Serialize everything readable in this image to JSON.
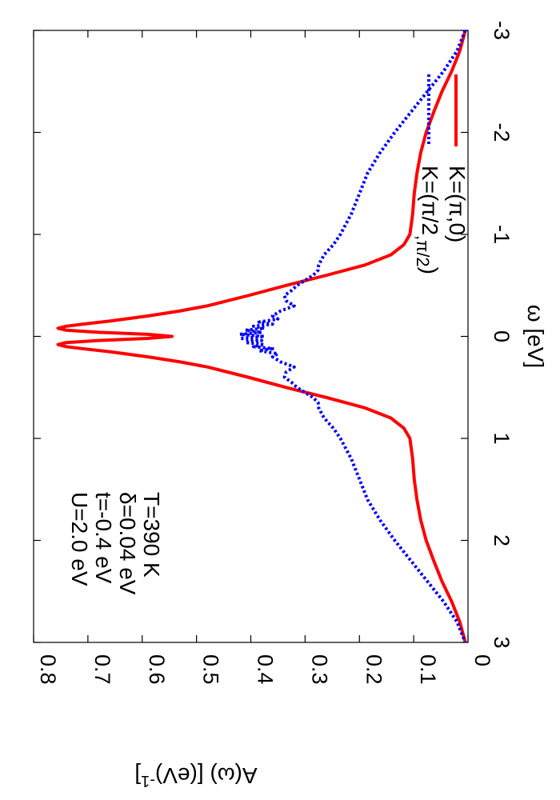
{
  "chart_data": {
    "type": "line",
    "orientation": "rotated-90-clockwise",
    "xlabel": "ω [eV]",
    "ylabel": "A(ω) [(eV)-1]",
    "ylabel_parts": {
      "main": "A(ω) [(eV)",
      "sup": "-1",
      "tail": "]"
    },
    "xlim": [
      -3,
      3
    ],
    "ylim": [
      0,
      0.8
    ],
    "xticks": [
      -3,
      -2,
      -1,
      0,
      1,
      2,
      3
    ],
    "xtick_labels": [
      "-3",
      "-2",
      "-1",
      "0",
      "1",
      "2",
      "3"
    ],
    "yticks": [
      0,
      0.1,
      0.2,
      0.3,
      0.4,
      0.5,
      0.6,
      0.7,
      0.8
    ],
    "ytick_labels": [
      "0",
      "0.1",
      "0.2",
      "0.3",
      "0.4",
      "0.5",
      "0.6",
      "0.7",
      "0.8"
    ],
    "grid": false,
    "legend_position": "top-right",
    "parameters": [
      "U=2.0 eV",
      "t=-0.4 eV",
      "δ=0.04 eV",
      "T=390 K"
    ],
    "series": [
      {
        "name": "K=(π,0)",
        "legend_parts": {
          "main": "K=(π,0)"
        },
        "color": "#ff0000",
        "style": "solid",
        "x": [
          -3.0,
          -2.8,
          -2.6,
          -2.4,
          -2.2,
          -2.0,
          -1.8,
          -1.6,
          -1.4,
          -1.2,
          -1.0,
          -0.9,
          -0.8,
          -0.7,
          -0.6,
          -0.5,
          -0.4,
          -0.3,
          -0.25,
          -0.2,
          -0.15,
          -0.12,
          -0.1,
          -0.08,
          -0.06,
          -0.04,
          -0.02,
          0.0,
          0.02,
          0.04,
          0.06,
          0.08,
          0.1,
          0.12,
          0.15,
          0.2,
          0.25,
          0.3,
          0.4,
          0.5,
          0.6,
          0.7,
          0.8,
          0.9,
          1.0,
          1.2,
          1.4,
          1.6,
          1.8,
          2.0,
          2.2,
          2.4,
          2.6,
          2.8,
          3.0
        ],
        "y": [
          0.005,
          0.015,
          0.03,
          0.048,
          0.063,
          0.077,
          0.087,
          0.094,
          0.099,
          0.102,
          0.107,
          0.118,
          0.142,
          0.19,
          0.26,
          0.335,
          0.405,
          0.48,
          0.53,
          0.59,
          0.66,
          0.71,
          0.74,
          0.755,
          0.74,
          0.68,
          0.59,
          0.545,
          0.59,
          0.68,
          0.74,
          0.755,
          0.74,
          0.71,
          0.66,
          0.59,
          0.53,
          0.48,
          0.405,
          0.335,
          0.26,
          0.19,
          0.142,
          0.118,
          0.107,
          0.102,
          0.099,
          0.094,
          0.087,
          0.077,
          0.063,
          0.048,
          0.03,
          0.015,
          0.005
        ]
      },
      {
        "name": "K=(π/2,π/2)",
        "legend_parts": {
          "main": "K=(π/2",
          "sub": ",π/2",
          "tail": ")"
        },
        "color": "#0000ff",
        "style": "dotted",
        "x": [
          -3.0,
          -2.8,
          -2.6,
          -2.4,
          -2.2,
          -2.0,
          -1.8,
          -1.6,
          -1.4,
          -1.2,
          -1.0,
          -0.9,
          -0.8,
          -0.7,
          -0.65,
          -0.6,
          -0.55,
          -0.5,
          -0.45,
          -0.4,
          -0.35,
          -0.3,
          -0.25,
          -0.2,
          -0.17,
          -0.14,
          -0.12,
          -0.1,
          -0.08,
          -0.06,
          -0.04,
          -0.02,
          0.0,
          0.02,
          0.04,
          0.06,
          0.08,
          0.1,
          0.12,
          0.14,
          0.17,
          0.2,
          0.25,
          0.3,
          0.35,
          0.4,
          0.45,
          0.5,
          0.55,
          0.6,
          0.65,
          0.7,
          0.8,
          0.9,
          1.0,
          1.2,
          1.4,
          1.6,
          1.8,
          2.0,
          2.2,
          2.4,
          2.6,
          2.8,
          3.0
        ],
        "y": [
          0.005,
          0.02,
          0.045,
          0.075,
          0.105,
          0.135,
          0.162,
          0.185,
          0.2,
          0.215,
          0.235,
          0.248,
          0.265,
          0.275,
          0.276,
          0.285,
          0.3,
          0.315,
          0.325,
          0.338,
          0.335,
          0.32,
          0.345,
          0.36,
          0.35,
          0.385,
          0.36,
          0.395,
          0.375,
          0.41,
          0.38,
          0.42,
          0.375,
          0.42,
          0.38,
          0.41,
          0.375,
          0.395,
          0.36,
          0.385,
          0.35,
          0.36,
          0.345,
          0.32,
          0.335,
          0.338,
          0.325,
          0.315,
          0.3,
          0.285,
          0.276,
          0.275,
          0.265,
          0.248,
          0.235,
          0.215,
          0.2,
          0.185,
          0.162,
          0.135,
          0.105,
          0.075,
          0.045,
          0.02,
          0.005
        ]
      }
    ]
  }
}
